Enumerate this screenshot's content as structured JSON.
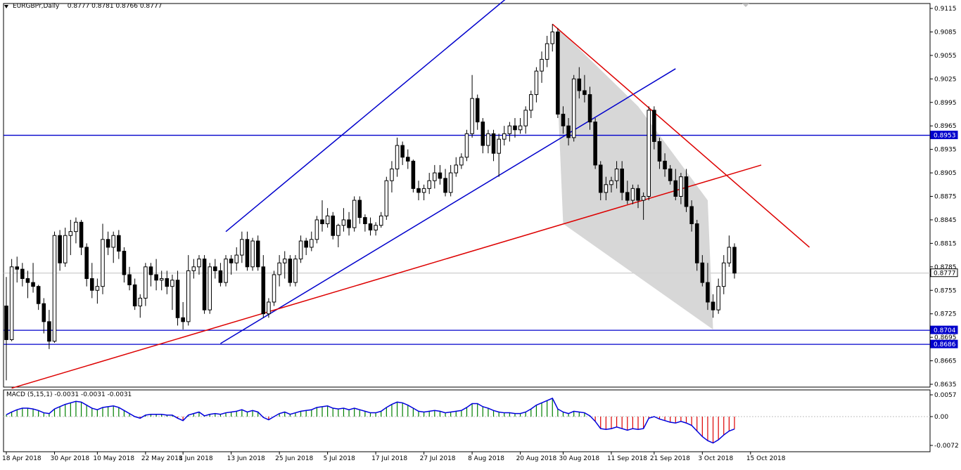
{
  "header": {
    "symbol_timeframe": "EURGBPr,Daily",
    "ohlc": "0.8777 0.8781 0.8766 0.8777"
  },
  "macd": {
    "title": "MACD (5,15,1) -0.0031 -0.0031 -0.0031",
    "axis_labels": [
      "0.0057",
      "0.00",
      "-0.0072"
    ]
  },
  "price_axis": {
    "labels": [
      "0.9115",
      "0.9085",
      "0.9055",
      "0.9025",
      "0.8995",
      "0.8965",
      "0.8935",
      "0.8905",
      "0.8875",
      "0.8845",
      "0.8815",
      "0.8785",
      "0.8755",
      "0.8725",
      "0.8695",
      "0.8665",
      "0.8635"
    ]
  },
  "date_axis": {
    "labels": [
      "18 Apr 2018",
      "30 Apr 2018",
      "10 May 2018",
      "22 May 2018",
      "1 Jun 2018",
      "13 Jun 2018",
      "25 Jun 2018",
      "5 Jul 2018",
      "17 Jul 2018",
      "27 Jul 2018",
      "8 Aug 2018",
      "20 Aug 2018",
      "30 Aug 2018",
      "11 Sep 2018",
      "21 Sep 2018",
      "3 Oct 2018",
      "15 Oct 2018"
    ]
  },
  "levels": {
    "resistance": "0.8953",
    "current": "0.8777",
    "support_1": "0.8704",
    "support_2": "0.8686"
  },
  "colors": {
    "trend_blue": "#0000cc",
    "trend_red": "#dd0000",
    "macd_positive": "#008000",
    "macd_negative": "#dd0000",
    "macd_signal": "#0000dd",
    "current_price_line": "#c0c0c0",
    "channel_fill": "#d3d3d3"
  },
  "chart_data": {
    "type": "candlestick",
    "symbol": "EURGBPr",
    "timeframe": "Daily",
    "ylim": [
      0.863,
      0.912
    ],
    "candles_ohlc": [
      [
        0.8735,
        0.8772,
        0.864,
        0.8692
      ],
      [
        0.8692,
        0.8795,
        0.869,
        0.8785
      ],
      [
        0.8785,
        0.8798,
        0.8765,
        0.8782
      ],
      [
        0.8782,
        0.879,
        0.876,
        0.877
      ],
      [
        0.877,
        0.878,
        0.8745,
        0.8765
      ],
      [
        0.8765,
        0.879,
        0.8752,
        0.876
      ],
      [
        0.876,
        0.8762,
        0.873,
        0.8738
      ],
      [
        0.8738,
        0.8745,
        0.87,
        0.8715
      ],
      [
        0.8715,
        0.873,
        0.868,
        0.869
      ],
      [
        0.869,
        0.883,
        0.8688,
        0.8825
      ],
      [
        0.8825,
        0.8832,
        0.878,
        0.879
      ],
      [
        0.879,
        0.8835,
        0.8785,
        0.8825
      ],
      [
        0.8825,
        0.8845,
        0.88,
        0.883
      ],
      [
        0.883,
        0.8848,
        0.8815,
        0.8842
      ],
      [
        0.8842,
        0.8845,
        0.88,
        0.881
      ],
      [
        0.881,
        0.8815,
        0.876,
        0.877
      ],
      [
        0.877,
        0.879,
        0.8745,
        0.8755
      ],
      [
        0.8755,
        0.877,
        0.8738,
        0.876
      ],
      [
        0.876,
        0.884,
        0.875,
        0.882
      ],
      [
        0.882,
        0.883,
        0.88,
        0.881
      ],
      [
        0.881,
        0.883,
        0.879,
        0.8825
      ],
      [
        0.8825,
        0.8832,
        0.8795,
        0.8805
      ],
      [
        0.8805,
        0.881,
        0.8765,
        0.8775
      ],
      [
        0.8775,
        0.8785,
        0.8755,
        0.8762
      ],
      [
        0.8762,
        0.877,
        0.873,
        0.8735
      ],
      [
        0.8735,
        0.875,
        0.872,
        0.8745
      ],
      [
        0.8745,
        0.879,
        0.8735,
        0.8785
      ],
      [
        0.8785,
        0.879,
        0.876,
        0.8775
      ],
      [
        0.8775,
        0.8795,
        0.8755,
        0.8768
      ],
      [
        0.8768,
        0.878,
        0.8755,
        0.877
      ],
      [
        0.877,
        0.878,
        0.875,
        0.876
      ],
      [
        0.876,
        0.8775,
        0.873,
        0.8768
      ],
      [
        0.8768,
        0.878,
        0.871,
        0.872
      ],
      [
        0.872,
        0.874,
        0.8705,
        0.8715
      ],
      [
        0.8715,
        0.88,
        0.871,
        0.878
      ],
      [
        0.878,
        0.8795,
        0.877,
        0.8785
      ],
      [
        0.8785,
        0.88,
        0.8775,
        0.8795
      ],
      [
        0.8795,
        0.88,
        0.8725,
        0.873
      ],
      [
        0.873,
        0.879,
        0.8725,
        0.8785
      ],
      [
        0.8785,
        0.8795,
        0.877,
        0.878
      ],
      [
        0.878,
        0.879,
        0.876,
        0.8765
      ],
      [
        0.8765,
        0.88,
        0.876,
        0.8795
      ],
      [
        0.8795,
        0.88,
        0.8775,
        0.879
      ],
      [
        0.879,
        0.881,
        0.878,
        0.88
      ],
      [
        0.88,
        0.883,
        0.879,
        0.882
      ],
      [
        0.882,
        0.883,
        0.878,
        0.8785
      ],
      [
        0.8785,
        0.8822,
        0.878,
        0.8818
      ],
      [
        0.8818,
        0.8825,
        0.878,
        0.8785
      ],
      [
        0.8785,
        0.88,
        0.872,
        0.8725
      ],
      [
        0.8725,
        0.8745,
        0.872,
        0.874
      ],
      [
        0.874,
        0.878,
        0.8735,
        0.8775
      ],
      [
        0.8775,
        0.88,
        0.876,
        0.879
      ],
      [
        0.879,
        0.8805,
        0.877,
        0.8795
      ],
      [
        0.8795,
        0.88,
        0.876,
        0.8765
      ],
      [
        0.8765,
        0.88,
        0.876,
        0.8795
      ],
      [
        0.8795,
        0.8825,
        0.879,
        0.8818
      ],
      [
        0.8818,
        0.8822,
        0.88,
        0.881
      ],
      [
        0.881,
        0.883,
        0.8805,
        0.882
      ],
      [
        0.882,
        0.885,
        0.8815,
        0.8845
      ],
      [
        0.8845,
        0.887,
        0.883,
        0.884
      ],
      [
        0.884,
        0.886,
        0.8835,
        0.885
      ],
      [
        0.885,
        0.8855,
        0.882,
        0.8825
      ],
      [
        0.8825,
        0.884,
        0.881,
        0.8838
      ],
      [
        0.8838,
        0.886,
        0.883,
        0.8845
      ],
      [
        0.8845,
        0.8855,
        0.8825,
        0.8835
      ],
      [
        0.8835,
        0.8875,
        0.883,
        0.887
      ],
      [
        0.887,
        0.8875,
        0.884,
        0.8848
      ],
      [
        0.8848,
        0.8852,
        0.883,
        0.884
      ],
      [
        0.884,
        0.8848,
        0.8825,
        0.8832
      ],
      [
        0.8832,
        0.8842,
        0.8825,
        0.8838
      ],
      [
        0.8838,
        0.8855,
        0.8835,
        0.885
      ],
      [
        0.885,
        0.89,
        0.8845,
        0.8895
      ],
      [
        0.8895,
        0.892,
        0.888,
        0.891
      ],
      [
        0.891,
        0.895,
        0.89,
        0.894
      ],
      [
        0.894,
        0.8945,
        0.8915,
        0.8925
      ],
      [
        0.8925,
        0.8935,
        0.891,
        0.892
      ],
      [
        0.892,
        0.8922,
        0.888,
        0.8885
      ],
      [
        0.8885,
        0.8895,
        0.887,
        0.888
      ],
      [
        0.888,
        0.889,
        0.887,
        0.8885
      ],
      [
        0.8885,
        0.8905,
        0.8878,
        0.8895
      ],
      [
        0.8895,
        0.8915,
        0.8885,
        0.8905
      ],
      [
        0.8905,
        0.8915,
        0.889,
        0.8898
      ],
      [
        0.8898,
        0.891,
        0.8875,
        0.888
      ],
      [
        0.888,
        0.8915,
        0.8875,
        0.8905
      ],
      [
        0.8905,
        0.8925,
        0.89,
        0.8915
      ],
      [
        0.8915,
        0.893,
        0.891,
        0.8925
      ],
      [
        0.8925,
        0.896,
        0.892,
        0.8955
      ],
      [
        0.8955,
        0.903,
        0.895,
        0.9
      ],
      [
        0.9,
        0.9005,
        0.896,
        0.897
      ],
      [
        0.897,
        0.8975,
        0.893,
        0.894
      ],
      [
        0.894,
        0.896,
        0.893,
        0.8955
      ],
      [
        0.8955,
        0.896,
        0.892,
        0.893
      ],
      [
        0.893,
        0.8955,
        0.89,
        0.8948
      ],
      [
        0.8948,
        0.8965,
        0.894,
        0.8955
      ],
      [
        0.8955,
        0.897,
        0.8945,
        0.8965
      ],
      [
        0.8965,
        0.8975,
        0.895,
        0.896
      ],
      [
        0.896,
        0.8975,
        0.8955,
        0.8965
      ],
      [
        0.8965,
        0.899,
        0.8955,
        0.8985
      ],
      [
        0.8985,
        0.901,
        0.8975,
        0.9005
      ],
      [
        0.9005,
        0.904,
        0.8995,
        0.9035
      ],
      [
        0.9035,
        0.906,
        0.902,
        0.905
      ],
      [
        0.905,
        0.908,
        0.904,
        0.907
      ],
      [
        0.907,
        0.9095,
        0.906,
        0.9085
      ],
      [
        0.9085,
        0.909,
        0.8975,
        0.898
      ],
      [
        0.898,
        0.899,
        0.8955,
        0.8965
      ],
      [
        0.8965,
        0.8975,
        0.894,
        0.895
      ],
      [
        0.895,
        0.903,
        0.8945,
        0.9025
      ],
      [
        0.9025,
        0.904,
        0.9,
        0.901
      ],
      [
        0.901,
        0.903,
        0.8995,
        0.9005
      ],
      [
        0.9005,
        0.9015,
        0.896,
        0.897
      ],
      [
        0.897,
        0.8975,
        0.891,
        0.8915
      ],
      [
        0.8915,
        0.892,
        0.887,
        0.888
      ],
      [
        0.888,
        0.89,
        0.887,
        0.889
      ],
      [
        0.889,
        0.89,
        0.888,
        0.8895
      ],
      [
        0.8895,
        0.892,
        0.8885,
        0.891
      ],
      [
        0.891,
        0.892,
        0.887,
        0.888
      ],
      [
        0.888,
        0.8895,
        0.8865,
        0.887
      ],
      [
        0.887,
        0.889,
        0.8865,
        0.8885
      ],
      [
        0.8885,
        0.889,
        0.886,
        0.887
      ],
      [
        0.887,
        0.888,
        0.8845,
        0.8875
      ],
      [
        0.8875,
        0.899,
        0.887,
        0.8985
      ],
      [
        0.8985,
        0.899,
        0.8935,
        0.8945
      ],
      [
        0.8945,
        0.895,
        0.891,
        0.892
      ],
      [
        0.892,
        0.893,
        0.89,
        0.891
      ],
      [
        0.891,
        0.8915,
        0.889,
        0.8895
      ],
      [
        0.8895,
        0.891,
        0.887,
        0.8875
      ],
      [
        0.8875,
        0.8905,
        0.8865,
        0.89
      ],
      [
        0.89,
        0.891,
        0.8855,
        0.8862
      ],
      [
        0.8862,
        0.887,
        0.883,
        0.884
      ],
      [
        0.884,
        0.8845,
        0.878,
        0.879
      ],
      [
        0.879,
        0.88,
        0.876,
        0.8765
      ],
      [
        0.8765,
        0.879,
        0.873,
        0.874
      ],
      [
        0.874,
        0.875,
        0.872,
        0.873
      ],
      [
        0.873,
        0.877,
        0.8725,
        0.876
      ],
      [
        0.876,
        0.88,
        0.875,
        0.879
      ],
      [
        0.879,
        0.8825,
        0.8785,
        0.881
      ],
      [
        0.881,
        0.8815,
        0.877,
        0.8777
      ]
    ],
    "horizontal_levels": [
      0.8953,
      0.8704,
      0.8686
    ],
    "current_price": 0.8777,
    "x_labels": [
      "18 Apr 2018",
      "30 Apr 2018",
      "10 May 2018",
      "22 May 2018",
      "1 Jun 2018",
      "13 Jun 2018",
      "25 Jun 2018",
      "5 Jul 2018",
      "17 Jul 2018",
      "27 Jul 2018",
      "8 Aug 2018",
      "20 Aug 2018",
      "30 Aug 2018",
      "11 Sep 2018",
      "21 Sep 2018",
      "3 Oct 2018",
      "15 Oct 2018"
    ],
    "macd_histogram": [
      0.0005,
      0.0012,
      0.0018,
      0.0022,
      0.0022,
      0.002,
      0.0016,
      0.001,
      0.0008,
      0.002,
      0.0026,
      0.0032,
      0.0036,
      0.004,
      0.0038,
      0.003,
      0.0022,
      0.0018,
      0.0024,
      0.0026,
      0.0028,
      0.0024,
      0.0016,
      0.0008,
      0.0,
      -0.0004,
      0.0004,
      0.0006,
      0.0006,
      0.0006,
      0.0004,
      0.0004,
      -0.0004,
      -0.001,
      0.0004,
      0.0008,
      0.0012,
      0.0002,
      0.0006,
      0.0008,
      0.0006,
      0.001,
      0.0012,
      0.0014,
      0.0018,
      0.0012,
      0.0016,
      0.0012,
      -0.0002,
      -0.0008,
      0.0,
      0.0008,
      0.0012,
      0.0006,
      0.001,
      0.0014,
      0.0016,
      0.0018,
      0.0024,
      0.0026,
      0.0028,
      0.0022,
      0.002,
      0.0022,
      0.0018,
      0.0022,
      0.0018,
      0.0014,
      0.001,
      0.001,
      0.0014,
      0.0024,
      0.0032,
      0.0038,
      0.0036,
      0.003,
      0.0022,
      0.0014,
      0.0012,
      0.0014,
      0.0016,
      0.0014,
      0.001,
      0.0012,
      0.0014,
      0.0016,
      0.0024,
      0.0034,
      0.0034,
      0.0026,
      0.0022,
      0.0016,
      0.0012,
      0.001,
      0.001,
      0.0008,
      0.0008,
      0.0012,
      0.002,
      0.003,
      0.0036,
      0.0042,
      0.0048,
      0.002,
      0.0012,
      0.0008,
      0.0014,
      0.0012,
      0.001,
      0.0002,
      -0.0012,
      -0.003,
      -0.0032,
      -0.003,
      -0.0026,
      -0.003,
      -0.0034,
      -0.003,
      -0.0032,
      -0.003,
      -0.0004,
      0.0,
      -0.0006,
      -0.001,
      -0.0014,
      -0.0016,
      -0.0012,
      -0.0016,
      -0.0022,
      -0.0036,
      -0.005,
      -0.006,
      -0.0066,
      -0.0058,
      -0.0046,
      -0.0036,
      -0.0031
    ]
  }
}
